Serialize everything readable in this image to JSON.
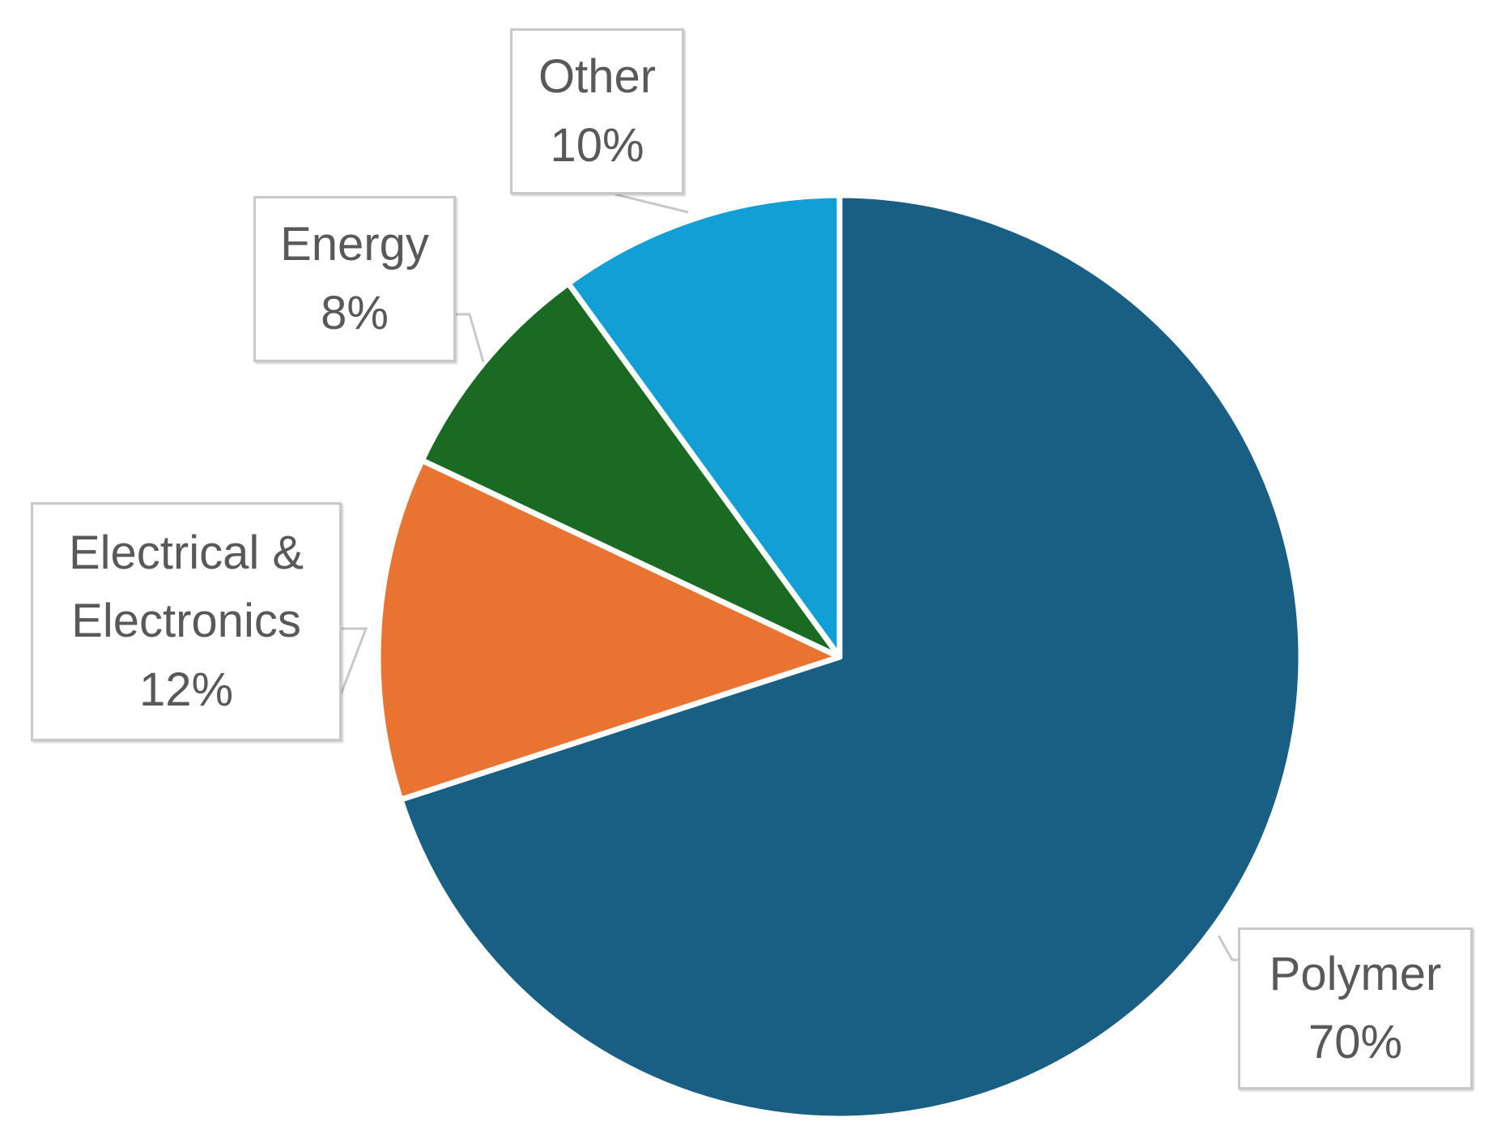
{
  "chart_data": {
    "type": "pie",
    "title": "",
    "start_angle_deg": 0,
    "direction": "clockwise",
    "slices": [
      {
        "label_lines": [
          "Polymer"
        ],
        "value_text": "70%",
        "value": 70,
        "color": "#185f83"
      },
      {
        "label_lines": [
          "Electrical &",
          "Electronics"
        ],
        "value_text": "12%",
        "value": 12,
        "color": "#e97432"
      },
      {
        "label_lines": [
          "Energy"
        ],
        "value_text": "8%",
        "value": 8,
        "color": "#1b6a23"
      },
      {
        "label_lines": [
          "Other"
        ],
        "value_text": "10%",
        "value": 10,
        "color": "#129fd6"
      }
    ],
    "legend": "none",
    "slice_separator_color": "#ffffff",
    "label_style": "callout boxes with leader lines"
  }
}
